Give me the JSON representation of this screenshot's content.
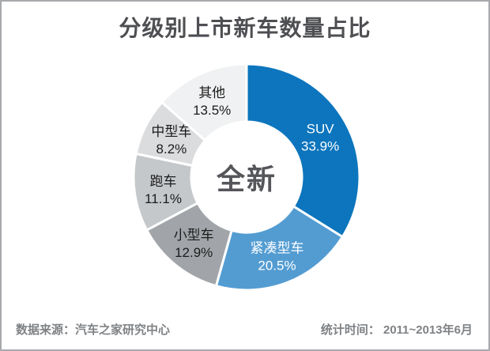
{
  "page": {
    "title": "分级别上市新车数量占比",
    "center_label": "全新",
    "footer": {
      "source": "数据来源：汽车之家研究中心",
      "period": "统计时间： 2011~2013年6月"
    }
  },
  "chart_data": {
    "type": "pie",
    "subtype": "donut",
    "title": "分级别上市新车数量占比",
    "center_label": "全新",
    "start_angle_deg": 0,
    "direction": "clockwise",
    "legend_position": "none",
    "labels_on_segments": true,
    "categories": [
      "SUV",
      "紧凑型车",
      "小型车",
      "跑车",
      "中型车",
      "其他"
    ],
    "values": [
      33.9,
      20.5,
      12.9,
      11.1,
      8.2,
      13.5
    ],
    "segments": [
      {
        "label": "SUV",
        "value": 33.9,
        "display": "33.9%",
        "color": "#0c75bd",
        "text_color": "#ffffff"
      },
      {
        "label": "紧凑型车",
        "value": 20.5,
        "display": "20.5%",
        "color": "#539cd2",
        "text_color": "#ffffff"
      },
      {
        "label": "小型车",
        "value": 12.9,
        "display": "12.9%",
        "color": "#a1a5a9",
        "text_color": "#1c1c1c"
      },
      {
        "label": "跑车",
        "value": 11.1,
        "display": "11.1%",
        "color": "#c5c8cb",
        "text_color": "#1c1c1c"
      },
      {
        "label": "中型车",
        "value": 8.2,
        "display": "8.2%",
        "color": "#dadcde",
        "text_color": "#1c1c1c"
      },
      {
        "label": "其他",
        "value": 13.5,
        "display": "13.5%",
        "color": "#f0f1f2",
        "text_color": "#1c1c1c"
      }
    ],
    "colors": {
      "separator": "#ffffff",
      "title_text": "#4e4f52",
      "center_text": "#55565a",
      "footer_text": "#7f8285",
      "frame_border": "#a7a9ac"
    }
  }
}
